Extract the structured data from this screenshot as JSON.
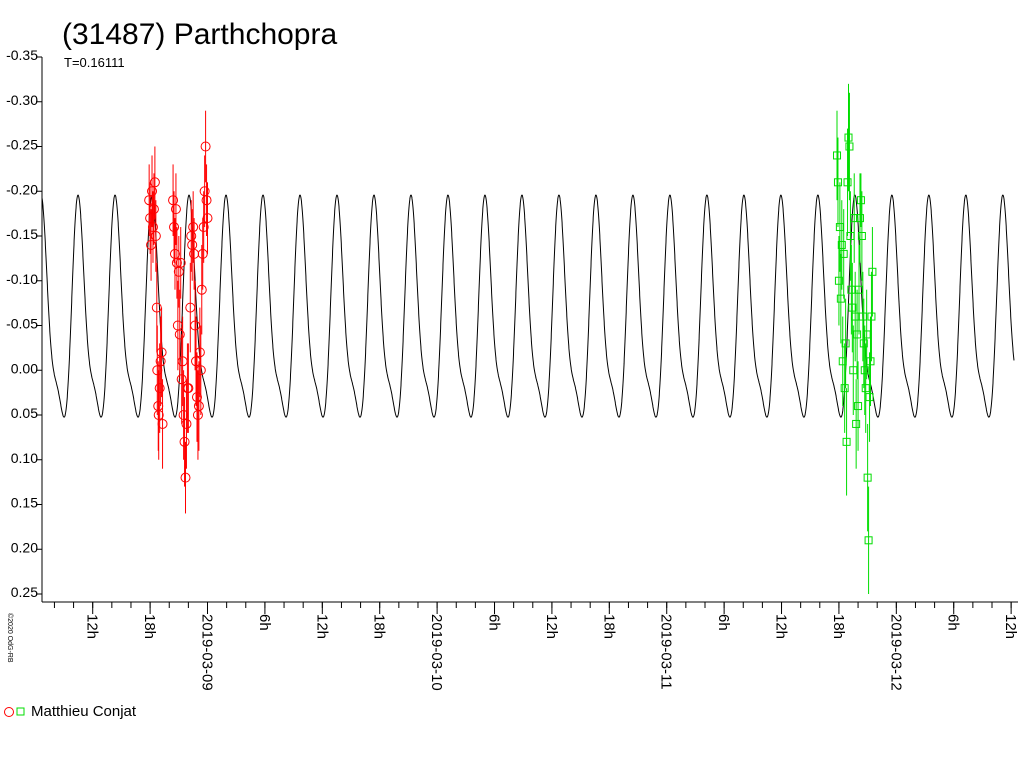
{
  "chart_data": {
    "type": "scatter",
    "title": "(31487) Parthchopra",
    "period_label": "T=0.16111",
    "copyright": "©2020 OdG-RB",
    "ylim": [
      -0.35,
      0.25
    ],
    "y_inverted": true,
    "y_ticks": [
      "-0.35",
      "-0.30",
      "-0.25",
      "-0.20",
      "-0.15",
      "-0.10",
      "-0.05",
      "0.00",
      "0.05",
      "0.10",
      "0.15",
      "0.20",
      "0.25"
    ],
    "x_unit": "hours since 2019-03-08 00:00 UT",
    "xlim": [
      6.7,
      108.3
    ],
    "x_ticks": [
      {
        "hour": 12,
        "label": "12h"
      },
      {
        "hour": 18,
        "label": "18h"
      },
      {
        "hour": 24,
        "label": "2019-03-09"
      },
      {
        "hour": 30,
        "label": "6h"
      },
      {
        "hour": 36,
        "label": "12h"
      },
      {
        "hour": 42,
        "label": "18h"
      },
      {
        "hour": 48,
        "label": "2019-03-10"
      },
      {
        "hour": 54,
        "label": "6h"
      },
      {
        "hour": 60,
        "label": "12h"
      },
      {
        "hour": 66,
        "label": "18h"
      },
      {
        "hour": 72,
        "label": "2019-03-11"
      },
      {
        "hour": 78,
        "label": "6h"
      },
      {
        "hour": 84,
        "label": "12h"
      },
      {
        "hour": 90,
        "label": "18h"
      },
      {
        "hour": 96,
        "label": "2019-03-12"
      },
      {
        "hour": 102,
        "label": "6h"
      },
      {
        "hour": 108,
        "label": "12h"
      }
    ],
    "model_curve": {
      "period_days": 0.16111,
      "mean": -0.05,
      "amplitude": 0.135,
      "color": "#000000"
    },
    "legend": {
      "label": "Matthieu Conjat",
      "marker_colors": [
        "#ff0000",
        "#00dd00"
      ]
    },
    "series": [
      {
        "color": "#ff0000",
        "marker": "circle",
        "points": [
          {
            "x": 17.9,
            "y": -0.19,
            "err": 0.04
          },
          {
            "x": 18.0,
            "y": -0.17,
            "err": 0.04
          },
          {
            "x": 18.1,
            "y": -0.14,
            "err": 0.04
          },
          {
            "x": 18.2,
            "y": -0.2,
            "err": 0.04
          },
          {
            "x": 18.3,
            "y": -0.16,
            "err": 0.04
          },
          {
            "x": 18.4,
            "y": -0.18,
            "err": 0.04
          },
          {
            "x": 18.5,
            "y": -0.21,
            "err": 0.04
          },
          {
            "x": 18.6,
            "y": -0.15,
            "err": 0.04
          },
          {
            "x": 18.7,
            "y": -0.07,
            "err": 0.05
          },
          {
            "x": 18.75,
            "y": 0.0,
            "err": 0.05
          },
          {
            "x": 18.85,
            "y": 0.04,
            "err": 0.05
          },
          {
            "x": 18.9,
            "y": 0.05,
            "err": 0.05
          },
          {
            "x": 19.0,
            "y": 0.02,
            "err": 0.05
          },
          {
            "x": 19.1,
            "y": -0.01,
            "err": 0.05
          },
          {
            "x": 19.2,
            "y": -0.02,
            "err": 0.05
          },
          {
            "x": 19.3,
            "y": 0.06,
            "err": 0.05
          },
          {
            "x": 20.4,
            "y": -0.19,
            "err": 0.04
          },
          {
            "x": 20.5,
            "y": -0.16,
            "err": 0.04
          },
          {
            "x": 20.6,
            "y": -0.13,
            "err": 0.04
          },
          {
            "x": 20.7,
            "y": -0.18,
            "err": 0.04
          },
          {
            "x": 20.8,
            "y": -0.12,
            "err": 0.04
          },
          {
            "x": 20.9,
            "y": -0.05,
            "err": 0.05
          },
          {
            "x": 21.0,
            "y": -0.11,
            "err": 0.04
          },
          {
            "x": 21.1,
            "y": -0.04,
            "err": 0.05
          },
          {
            "x": 21.2,
            "y": -0.12,
            "err": 0.04
          },
          {
            "x": 21.3,
            "y": 0.01,
            "err": 0.05
          },
          {
            "x": 21.4,
            "y": -0.01,
            "err": 0.05
          },
          {
            "x": 21.5,
            "y": 0.05,
            "err": 0.05
          },
          {
            "x": 21.6,
            "y": 0.08,
            "err": 0.05
          },
          {
            "x": 21.7,
            "y": 0.12,
            "err": 0.04
          },
          {
            "x": 21.8,
            "y": 0.06,
            "err": 0.05
          },
          {
            "x": 21.9,
            "y": 0.02,
            "err": 0.05
          },
          {
            "x": 22.0,
            "y": 0.02,
            "err": 0.05
          },
          {
            "x": 22.2,
            "y": -0.07,
            "err": 0.05
          },
          {
            "x": 22.3,
            "y": -0.15,
            "err": 0.04
          },
          {
            "x": 22.4,
            "y": -0.14,
            "err": 0.04
          },
          {
            "x": 22.5,
            "y": -0.16,
            "err": 0.04
          },
          {
            "x": 22.6,
            "y": -0.13,
            "err": 0.04
          },
          {
            "x": 22.7,
            "y": -0.05,
            "err": 0.05
          },
          {
            "x": 22.8,
            "y": -0.01,
            "err": 0.05
          },
          {
            "x": 22.9,
            "y": 0.03,
            "err": 0.05
          },
          {
            "x": 23.0,
            "y": 0.05,
            "err": 0.05
          },
          {
            "x": 23.1,
            "y": 0.04,
            "err": 0.05
          },
          {
            "x": 23.2,
            "y": -0.02,
            "err": 0.05
          },
          {
            "x": 23.3,
            "y": 0.0,
            "err": 0.05
          },
          {
            "x": 23.4,
            "y": -0.09,
            "err": 0.05
          },
          {
            "x": 23.5,
            "y": -0.13,
            "err": 0.04
          },
          {
            "x": 23.6,
            "y": -0.16,
            "err": 0.04
          },
          {
            "x": 23.7,
            "y": -0.2,
            "err": 0.04
          },
          {
            "x": 23.8,
            "y": -0.25,
            "err": 0.04
          },
          {
            "x": 23.9,
            "y": -0.19,
            "err": 0.04
          },
          {
            "x": 24.0,
            "y": -0.17,
            "err": 0.04
          }
        ]
      },
      {
        "color": "#00dd00",
        "marker": "square",
        "points": [
          {
            "x": 89.8,
            "y": -0.24,
            "err": 0.05
          },
          {
            "x": 89.9,
            "y": -0.21,
            "err": 0.05
          },
          {
            "x": 90.0,
            "y": -0.1,
            "err": 0.05
          },
          {
            "x": 90.1,
            "y": -0.16,
            "err": 0.05
          },
          {
            "x": 90.2,
            "y": -0.08,
            "err": 0.05
          },
          {
            "x": 90.3,
            "y": -0.14,
            "err": 0.05
          },
          {
            "x": 90.4,
            "y": -0.01,
            "err": 0.05
          },
          {
            "x": 90.5,
            "y": -0.13,
            "err": 0.05
          },
          {
            "x": 90.6,
            "y": 0.02,
            "err": 0.05
          },
          {
            "x": 90.7,
            "y": -0.03,
            "err": 0.05
          },
          {
            "x": 90.8,
            "y": 0.08,
            "err": 0.06
          },
          {
            "x": 90.9,
            "y": -0.21,
            "err": 0.06
          },
          {
            "x": 91.0,
            "y": -0.26,
            "err": 0.06
          },
          {
            "x": 91.1,
            "y": -0.25,
            "err": 0.06
          },
          {
            "x": 91.2,
            "y": -0.15,
            "err": 0.05
          },
          {
            "x": 91.3,
            "y": -0.09,
            "err": 0.05
          },
          {
            "x": 91.4,
            "y": -0.07,
            "err": 0.05
          },
          {
            "x": 91.5,
            "y": 0.0,
            "err": 0.05
          },
          {
            "x": 91.6,
            "y": -0.17,
            "err": 0.05
          },
          {
            "x": 91.7,
            "y": -0.06,
            "err": 0.05
          },
          {
            "x": 91.8,
            "y": 0.06,
            "err": 0.05
          },
          {
            "x": 91.9,
            "y": -0.04,
            "err": 0.05
          },
          {
            "x": 92.0,
            "y": 0.04,
            "err": 0.05
          },
          {
            "x": 92.1,
            "y": -0.09,
            "err": 0.05
          },
          {
            "x": 92.2,
            "y": -0.17,
            "err": 0.05
          },
          {
            "x": 92.3,
            "y": -0.19,
            "err": 0.03
          },
          {
            "x": 92.4,
            "y": -0.15,
            "err": 0.05
          },
          {
            "x": 92.5,
            "y": -0.06,
            "err": 0.05
          },
          {
            "x": 92.6,
            "y": -0.03,
            "err": 0.05
          },
          {
            "x": 92.7,
            "y": 0.0,
            "err": 0.05
          },
          {
            "x": 92.8,
            "y": 0.02,
            "err": 0.05
          },
          {
            "x": 92.9,
            "y": -0.04,
            "err": 0.05
          },
          {
            "x": 93.0,
            "y": 0.12,
            "err": 0.06
          },
          {
            "x": 93.1,
            "y": 0.19,
            "err": 0.06
          },
          {
            "x": 93.2,
            "y": 0.03,
            "err": 0.05
          },
          {
            "x": 93.3,
            "y": -0.01,
            "err": 0.05
          },
          {
            "x": 93.4,
            "y": -0.06,
            "err": 0.05
          },
          {
            "x": 93.5,
            "y": -0.11,
            "err": 0.05
          }
        ]
      }
    ]
  }
}
